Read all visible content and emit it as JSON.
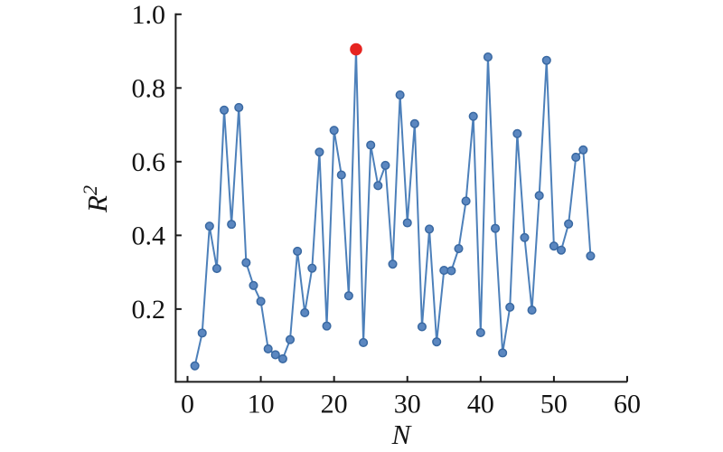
{
  "figure": {
    "background": "#ffffff",
    "kind": "scientific line plot of R-squared versus N with one highlighted maximum point"
  },
  "colors": {
    "line": "#4d80ba",
    "marker_fill": "#5b87c0",
    "marker_edge": "#3a69a2",
    "highlight": "#e62420",
    "axis": "#1c1c1c",
    "text": "#141414"
  },
  "chart_data": {
    "type": "line",
    "title": "",
    "xlabel": "N",
    "ylabel": "R2",
    "ylabel_base": "R",
    "ylabel_sup": "2",
    "xlim": [
      -1.7,
      60
    ],
    "ylim": [
      0,
      1.0
    ],
    "grid": false,
    "legend_position": "none",
    "x_tick_values": [
      0,
      10,
      20,
      30,
      40,
      50,
      60
    ],
    "x_tick_labels": [
      "0",
      "10",
      "20",
      "30",
      "40",
      "50",
      "60"
    ],
    "y_tick_values": [
      0.2,
      0.4,
      0.6,
      0.8,
      1.0
    ],
    "y_tick_labels": [
      "0.2",
      "0.4",
      "0.6",
      "0.8",
      "1.0"
    ],
    "series": [
      {
        "name": "R2 vs N",
        "marker": "circle",
        "x": [
          1,
          2,
          3,
          4,
          5,
          6,
          7,
          8,
          9,
          10,
          11,
          12,
          13,
          14,
          15,
          16,
          17,
          18,
          19,
          20,
          21,
          22,
          23,
          24,
          25,
          26,
          27,
          28,
          29,
          30,
          31,
          32,
          33,
          34,
          35,
          36,
          37,
          38,
          39,
          40,
          41,
          42,
          43,
          44,
          45,
          46,
          47,
          48,
          49,
          50,
          51,
          52,
          53,
          54,
          55
        ],
        "values": [
          0.046,
          0.135,
          0.425,
          0.31,
          0.74,
          0.43,
          0.747,
          0.326,
          0.264,
          0.221,
          0.092,
          0.076,
          0.065,
          0.117,
          0.357,
          0.19,
          0.311,
          0.626,
          0.154,
          0.685,
          0.564,
          0.236,
          0.905,
          0.109,
          0.645,
          0.535,
          0.59,
          0.322,
          0.781,
          0.434,
          0.703,
          0.152,
          0.417,
          0.111,
          0.305,
          0.304,
          0.364,
          0.493,
          0.723,
          0.136,
          0.884,
          0.419,
          0.081,
          0.205,
          0.676,
          0.394,
          0.197,
          0.508,
          0.875,
          0.371,
          0.36,
          0.431,
          0.612,
          0.632,
          0.344
        ]
      }
    ],
    "highlight_point": {
      "x": 23,
      "y": 0.905,
      "color": "#e62420",
      "meaning": "best (maximum) R2 value marked with a larger red dot"
    }
  }
}
